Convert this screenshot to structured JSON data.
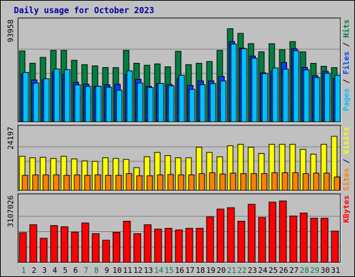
{
  "title": "Daily usage for October 2023",
  "colors": {
    "background": "#c0c0c0",
    "panel": "#c0c0c0",
    "hits": "#008040",
    "files": "#0040ff",
    "pages": "#00c0ff",
    "visits": "#ffff00",
    "sites": "#ff8000",
    "kbytes": "#ff0000",
    "title": "#0000a0",
    "weekend_tick": "#008040"
  },
  "chart_data": [
    {
      "type": "bar",
      "panel": "top",
      "y_max_label": "93958",
      "ylim": [
        0,
        93958
      ],
      "side_labels": [
        "Pages",
        "Files",
        "Hits"
      ],
      "categories": [
        "1",
        "2",
        "3",
        "4",
        "5",
        "6",
        "7",
        "8",
        "9",
        "10",
        "11",
        "12",
        "13",
        "14",
        "15",
        "16",
        "17",
        "18",
        "19",
        "20",
        "21",
        "22",
        "23",
        "24",
        "25",
        "26",
        "27",
        "28",
        "29",
        "30",
        "31"
      ],
      "series": [
        {
          "name": "Hits",
          "values": [
            68700,
            56800,
            62500,
            69300,
            69300,
            59700,
            55500,
            54300,
            52700,
            52600,
            69300,
            56800,
            54900,
            56200,
            53400,
            68400,
            55500,
            56800,
            58500,
            69300,
            90300,
            85800,
            75800,
            67900,
            75800,
            69900,
            77800,
            67900,
            56700,
            53900,
            52600
          ]
        },
        {
          "name": "Files",
          "values": [
            46000,
            40700,
            40700,
            48500,
            46000,
            38400,
            36500,
            34500,
            35900,
            36400,
            45700,
            41300,
            34600,
            37300,
            36300,
            41800,
            35300,
            39700,
            39700,
            44000,
            77800,
            71500,
            63700,
            47600,
            49000,
            57600,
            70900,
            52700,
            44700,
            49000,
            41800
          ]
        },
        {
          "name": "Pages",
          "values": [
            48000,
            37600,
            41800,
            51200,
            50600,
            35900,
            34400,
            34500,
            33600,
            30700,
            49500,
            37600,
            33200,
            37300,
            35000,
            45200,
            31500,
            36000,
            37100,
            39700,
            75500,
            70900,
            61700,
            46800,
            52300,
            51100,
            68900,
            50400,
            42900,
            47100,
            45200
          ]
        }
      ]
    },
    {
      "type": "bar",
      "panel": "middle",
      "y_max_label": "24197",
      "ylim": [
        0,
        24197
      ],
      "side_labels": [
        "Sites",
        "Visits"
      ],
      "categories": [
        "1",
        "2",
        "3",
        "4",
        "5",
        "6",
        "7",
        "8",
        "9",
        "10",
        "11",
        "12",
        "13",
        "14",
        "15",
        "16",
        "17",
        "18",
        "19",
        "20",
        "21",
        "22",
        "23",
        "24",
        "25",
        "26",
        "27",
        "28",
        "29",
        "30",
        "31"
      ],
      "series": [
        {
          "name": "Visits",
          "values": [
            14200,
            13600,
            13800,
            13300,
            14200,
            13100,
            12300,
            12100,
            13600,
            13300,
            12900,
            9500,
            14000,
            15800,
            14500,
            13600,
            13600,
            18000,
            15800,
            14000,
            18600,
            19200,
            18000,
            15400,
            19200,
            19200,
            19200,
            17100,
            15100,
            19200,
            22500
          ]
        },
        {
          "name": "Sites",
          "values": [
            6280,
            6460,
            6460,
            6460,
            6280,
            6460,
            6280,
            6460,
            6280,
            6280,
            7010,
            6100,
            6100,
            6460,
            6640,
            6460,
            6460,
            7010,
            7370,
            6830,
            7190,
            7010,
            7010,
            7010,
            7370,
            7370,
            7370,
            7010,
            7190,
            7190,
            5560
          ]
        }
      ]
    },
    {
      "type": "bar",
      "panel": "bottom",
      "y_max_label": "3107026",
      "ylim": [
        0,
        3107026
      ],
      "side_labels": [
        "KBytes"
      ],
      "categories": [
        "1",
        "2",
        "3",
        "4",
        "5",
        "6",
        "7",
        "8",
        "9",
        "10",
        "11",
        "12",
        "13",
        "14",
        "15",
        "16",
        "17",
        "18",
        "19",
        "20",
        "21",
        "22",
        "23",
        "24",
        "25",
        "26",
        "27",
        "28",
        "29",
        "30",
        "31"
      ],
      "series": [
        {
          "name": "KBytes",
          "values": [
            1500000,
            1900000,
            1220000,
            1860000,
            1800000,
            1530000,
            1990000,
            1450000,
            1120000,
            1520000,
            2080000,
            1450000,
            1900000,
            1680000,
            1720000,
            1640000,
            1720000,
            1720000,
            2300000,
            2690000,
            2760000,
            2080000,
            2930000,
            2270000,
            3040000,
            3100000,
            2340000,
            2490000,
            2230000,
            2230000,
            1580000
          ]
        }
      ]
    }
  ],
  "x_ticks": [
    {
      "label": "1",
      "weekend": true
    },
    {
      "label": "2",
      "weekend": false
    },
    {
      "label": "3",
      "weekend": false
    },
    {
      "label": "4",
      "weekend": false
    },
    {
      "label": "5",
      "weekend": false
    },
    {
      "label": "6",
      "weekend": false
    },
    {
      "label": "7",
      "weekend": true
    },
    {
      "label": "8",
      "weekend": true
    },
    {
      "label": "9",
      "weekend": false
    },
    {
      "label": "10",
      "weekend": false
    },
    {
      "label": "11",
      "weekend": false
    },
    {
      "label": "12",
      "weekend": false
    },
    {
      "label": "13",
      "weekend": false
    },
    {
      "label": "14",
      "weekend": true
    },
    {
      "label": "15",
      "weekend": true
    },
    {
      "label": "16",
      "weekend": false
    },
    {
      "label": "17",
      "weekend": false
    },
    {
      "label": "18",
      "weekend": false
    },
    {
      "label": "19",
      "weekend": false
    },
    {
      "label": "20",
      "weekend": false
    },
    {
      "label": "21",
      "weekend": true
    },
    {
      "label": "22",
      "weekend": true
    },
    {
      "label": "23",
      "weekend": false
    },
    {
      "label": "24",
      "weekend": false
    },
    {
      "label": "25",
      "weekend": false
    },
    {
      "label": "26",
      "weekend": false
    },
    {
      "label": "27",
      "weekend": false
    },
    {
      "label": "28",
      "weekend": true
    },
    {
      "label": "29",
      "weekend": true
    },
    {
      "label": "30",
      "weekend": false
    },
    {
      "label": "31",
      "weekend": false
    }
  ]
}
